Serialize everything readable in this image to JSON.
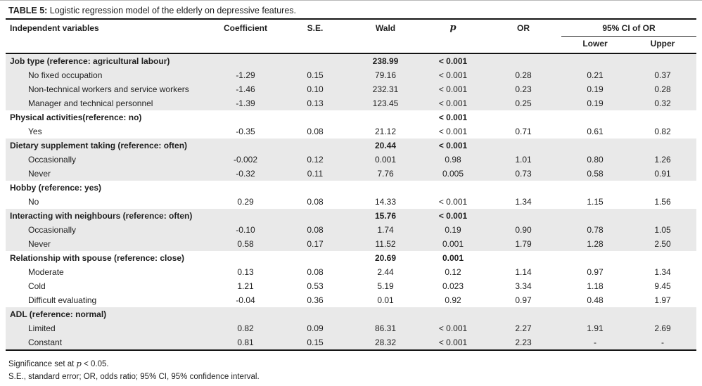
{
  "title": {
    "label": "TABLE 5:",
    "text": " Logistic regression model of the elderly on depressive features."
  },
  "colors": {
    "row_shade": "#e9e9e9",
    "top_rule_gray": "#b8b8b8",
    "rule_black": "#141414",
    "text": "#1f1f1f"
  },
  "table": {
    "header": {
      "independent_variables": "Independent variables",
      "coefficient": "Coefficient",
      "se": "S.E.",
      "wald": "Wald",
      "p": "p",
      "or": "OR",
      "ci": "95% CI of OR",
      "lower": "Lower",
      "upper": "Upper"
    },
    "rows": [
      {
        "label": "Job type (reference: agricultural labour)",
        "group": true,
        "shaded": true,
        "coefficient": "",
        "se": "",
        "wald": "238.99",
        "p": "< 0.001",
        "or": "",
        "lower": "",
        "upper": ""
      },
      {
        "label": "No fixed occupation",
        "indent": true,
        "shaded": true,
        "coefficient": "-1.29",
        "se": "0.15",
        "wald": "79.16",
        "p": "< 0.001",
        "or": "0.28",
        "lower": "0.21",
        "upper": "0.37"
      },
      {
        "label": "Non-technical workers and service workers",
        "indent": true,
        "shaded": true,
        "coefficient": "-1.46",
        "se": "0.10",
        "wald": "232.31",
        "p": "< 0.001",
        "or": "0.23",
        "lower": "0.19",
        "upper": "0.28"
      },
      {
        "label": "Manager and technical personnel",
        "indent": true,
        "shaded": true,
        "coefficient": "-1.39",
        "se": "0.13",
        "wald": "123.45",
        "p": "< 0.001",
        "or": "0.25",
        "lower": "0.19",
        "upper": "0.32"
      },
      {
        "label": "Physical activities(reference: no)",
        "group": true,
        "shaded": false,
        "coefficient": "",
        "se": "",
        "wald": "",
        "p": "< 0.001",
        "or": "",
        "lower": "",
        "upper": ""
      },
      {
        "label": "Yes",
        "indent": true,
        "shaded": false,
        "coefficient": "-0.35",
        "se": "0.08",
        "wald": "21.12",
        "p": "< 0.001",
        "or": "0.71",
        "lower": "0.61",
        "upper": "0.82"
      },
      {
        "label": "Dietary supplement taking (reference: often)",
        "group": true,
        "shaded": true,
        "coefficient": "",
        "se": "",
        "wald": "20.44",
        "p": "< 0.001",
        "or": "",
        "lower": "",
        "upper": ""
      },
      {
        "label": "Occasionally",
        "indent": true,
        "shaded": true,
        "coefficient": "-0.002",
        "se": "0.12",
        "wald": "0.001",
        "p": "0.98",
        "or": "1.01",
        "lower": "0.80",
        "upper": "1.26"
      },
      {
        "label": "Never",
        "indent": true,
        "shaded": true,
        "coefficient": "-0.32",
        "se": "0.11",
        "wald": "7.76",
        "p": "0.005",
        "or": "0.73",
        "lower": "0.58",
        "upper": "0.91"
      },
      {
        "label": "Hobby (reference: yes)",
        "group": true,
        "shaded": false,
        "coefficient": "",
        "se": "",
        "wald": "",
        "p": "",
        "or": "",
        "lower": "",
        "upper": ""
      },
      {
        "label": "No",
        "indent": true,
        "shaded": false,
        "coefficient": "0.29",
        "se": "0.08",
        "wald": "14.33",
        "p": "< 0.001",
        "or": "1.34",
        "lower": "1.15",
        "upper": "1.56"
      },
      {
        "label": "Interacting with neighbours (reference: often)",
        "group": true,
        "shaded": true,
        "coefficient": "",
        "se": "",
        "wald": "15.76",
        "p": "< 0.001",
        "or": "",
        "lower": "",
        "upper": ""
      },
      {
        "label": "Occasionally",
        "indent": true,
        "shaded": true,
        "coefficient": "-0.10",
        "se": "0.08",
        "wald": "1.74",
        "p": "0.19",
        "or": "0.90",
        "lower": "0.78",
        "upper": "1.05"
      },
      {
        "label": "Never",
        "indent": true,
        "shaded": true,
        "coefficient": "0.58",
        "se": "0.17",
        "wald": "11.52",
        "p": "0.001",
        "or": "1.79",
        "lower": "1.28",
        "upper": "2.50"
      },
      {
        "label": "Relationship with spouse (reference: close)",
        "group": true,
        "shaded": false,
        "coefficient": "",
        "se": "",
        "wald": "20.69",
        "p": "0.001",
        "or": "",
        "lower": "",
        "upper": ""
      },
      {
        "label": "Moderate",
        "indent": true,
        "shaded": false,
        "coefficient": "0.13",
        "se": "0.08",
        "wald": "2.44",
        "p": "0.12",
        "or": "1.14",
        "lower": "0.97",
        "upper": "1.34"
      },
      {
        "label": "Cold",
        "indent": true,
        "shaded": false,
        "coefficient": "1.21",
        "se": "0.53",
        "wald": "5.19",
        "p": "0.023",
        "or": "3.34",
        "lower": "1.18",
        "upper": "9.45"
      },
      {
        "label": "Difficult evaluating",
        "indent": true,
        "shaded": false,
        "coefficient": "-0.04",
        "se": "0.36",
        "wald": "0.01",
        "p": "0.92",
        "or": "0.97",
        "lower": "0.48",
        "upper": "1.97"
      },
      {
        "label": "ADL (reference: normal)",
        "group": true,
        "shaded": true,
        "coefficient": "",
        "se": "",
        "wald": "",
        "p": "",
        "or": "",
        "lower": "",
        "upper": ""
      },
      {
        "label": "Limited",
        "indent": true,
        "shaded": true,
        "coefficient": "0.82",
        "se": "0.09",
        "wald": "86.31",
        "p": "< 0.001",
        "or": "2.27",
        "lower": "1.91",
        "upper": "2.69"
      },
      {
        "label": "Constant",
        "indent": true,
        "shaded": true,
        "coefficient": "0.81",
        "se": "0.15",
        "wald": "28.32",
        "p": "< 0.001",
        "or": "2.23",
        "lower": "-",
        "upper": "-"
      }
    ]
  },
  "footnotes": {
    "significance_pre": "Significance set at ",
    "significance_p": "p",
    "significance_post": " < 0.05.",
    "abbreviations": "S.E., standard error; OR, odds ratio; 95% CI, 95% confidence interval."
  }
}
